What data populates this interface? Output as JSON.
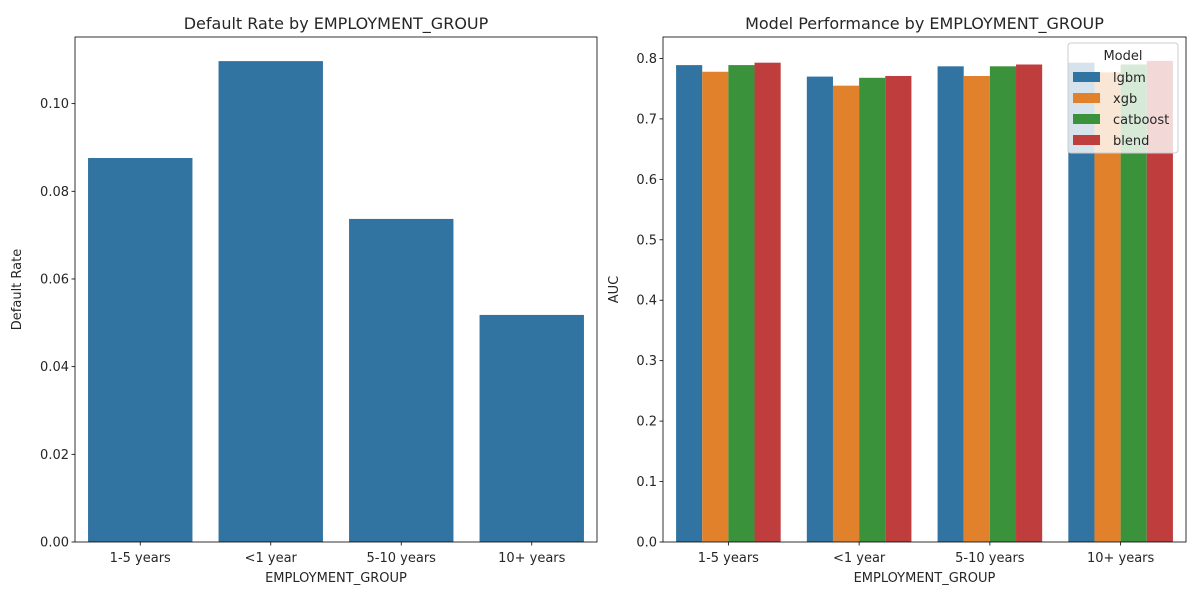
{
  "chart_data": [
    {
      "type": "bar",
      "title": "Default Rate by EMPLOYMENT_GROUP",
      "xlabel": "EMPLOYMENT_GROUP",
      "ylabel": "Default Rate",
      "categories": [
        "1-5 years",
        "<1 year",
        "5-10 years",
        "10+ years"
      ],
      "values": [
        0.0876,
        0.1097,
        0.0737,
        0.0518
      ],
      "ylim": [
        0,
        0.1152
      ],
      "yticks": [
        0.0,
        0.02,
        0.04,
        0.06,
        0.08,
        0.1
      ],
      "ytick_labels": [
        "0.00",
        "0.02",
        "0.04",
        "0.06",
        "0.08",
        "0.10"
      ],
      "grid": false,
      "color": "#3274a1"
    },
    {
      "type": "bar",
      "title": "Model Performance by EMPLOYMENT_GROUP",
      "xlabel": "EMPLOYMENT_GROUP",
      "ylabel": "AUC",
      "categories": [
        "1-5 years",
        "<1 year",
        "5-10 years",
        "10+ years"
      ],
      "series": [
        {
          "name": "lgbm",
          "color": "#3274a1",
          "values": [
            0.789,
            0.77,
            0.787,
            0.793
          ]
        },
        {
          "name": "xgb",
          "color": "#e1812c",
          "values": [
            0.778,
            0.755,
            0.771,
            0.777
          ]
        },
        {
          "name": "catboost",
          "color": "#3a923a",
          "values": [
            0.789,
            0.768,
            0.787,
            0.79
          ]
        },
        {
          "name": "blend",
          "color": "#c03d3e",
          "values": [
            0.793,
            0.771,
            0.79,
            0.796
          ]
        }
      ],
      "ylim": [
        0,
        0.8355
      ],
      "yticks": [
        0.0,
        0.1,
        0.2,
        0.3,
        0.4,
        0.5,
        0.6,
        0.7,
        0.8
      ],
      "ytick_labels": [
        "0.0",
        "0.1",
        "0.2",
        "0.3",
        "0.4",
        "0.5",
        "0.6",
        "0.7",
        "0.8"
      ],
      "grid": false,
      "legend": {
        "title": "Model",
        "placement": "top-right"
      }
    }
  ]
}
